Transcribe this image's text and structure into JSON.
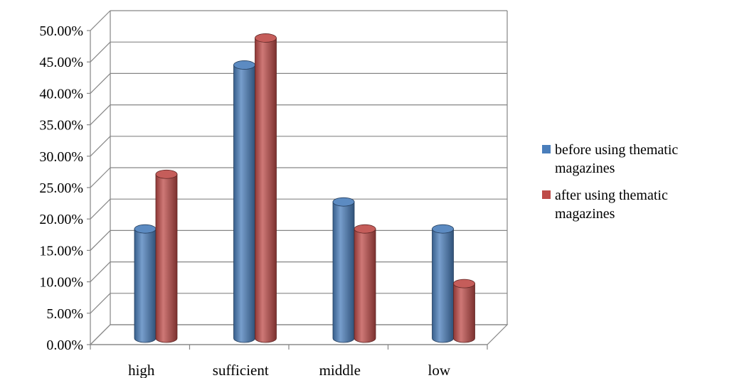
{
  "chart_data": {
    "type": "bar",
    "categories": [
      "high",
      "sufficient",
      "middle",
      "low"
    ],
    "series": [
      {
        "name": "before using thematic magazines",
        "values": [
          17.4,
          43.5,
          21.7,
          17.4
        ],
        "color": "#4a7ebb"
      },
      {
        "name": "after using thematic magazines",
        "values": [
          26.1,
          47.8,
          17.4,
          8.7
        ],
        "color": "#be4b48"
      }
    ],
    "ylim": [
      0,
      50
    ],
    "yticks": [
      "0.00%",
      "5.00%",
      "10.00%",
      "15.00%",
      "20.00%",
      "25.00%",
      "30.00%",
      "35.00%",
      "40.00%",
      "45.00%",
      "50.00%"
    ],
    "title": "",
    "xlabel": "",
    "ylabel": "",
    "grid": true,
    "legend_position": "right",
    "style": "3d-cylinder"
  }
}
